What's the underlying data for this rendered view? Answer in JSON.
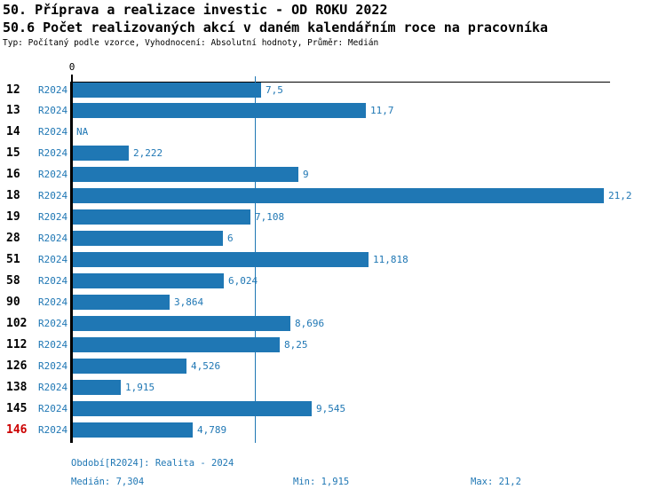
{
  "header": {
    "title_line1": "50. Příprava a realizace investic - OD ROKU 2022",
    "title_line2": "50.6 Počet realizovaných akcí v daném kalendářním roce na pracovníka",
    "subtitle": "Typ: Počítaný podle vzorce, Vyhodnocení: Absolutní hodnoty, Průměr: Medián"
  },
  "colors": {
    "bar_blue": "#1f77b4",
    "text_blue": "#1f77b4",
    "highlight_red": "#cc0000",
    "axis_black": "#000000",
    "title_black": "#000000"
  },
  "chart_data": {
    "type": "bar",
    "orientation": "horizontal",
    "title": "50.6 Počet realizovaných akcí v daném kalendářním roce na pracovníka",
    "series_label": "R2024",
    "categories": [
      "12",
      "13",
      "14",
      "15",
      "16",
      "18",
      "19",
      "28",
      "51",
      "58",
      "90",
      "102",
      "112",
      "126",
      "138",
      "145",
      "146"
    ],
    "values": [
      7.5,
      11.7,
      null,
      2.222,
      9,
      21.2,
      7.108,
      6,
      11.818,
      6.024,
      3.864,
      8.696,
      8.25,
      4.526,
      1.915,
      9.545,
      4.789
    ],
    "value_labels": [
      "7,5",
      "11,7",
      "NA",
      "2,222",
      "9",
      "21,2",
      "7,108",
      "6",
      "11,818",
      "6,024",
      "3,864",
      "8,696",
      "8,25",
      "4,526",
      "1,915",
      "9,545",
      "4,789"
    ],
    "highlighted_category": "146",
    "axis_zero_label": "0",
    "xlim": [
      0,
      21.5
    ],
    "median_value": 7.304,
    "grid": false,
    "legend": "none"
  },
  "footer": {
    "period": "Období[R2024]: Realita - 2024",
    "median": "Medián: 7,304",
    "min": "Min: 1,915",
    "max": "Max: 21,2"
  }
}
